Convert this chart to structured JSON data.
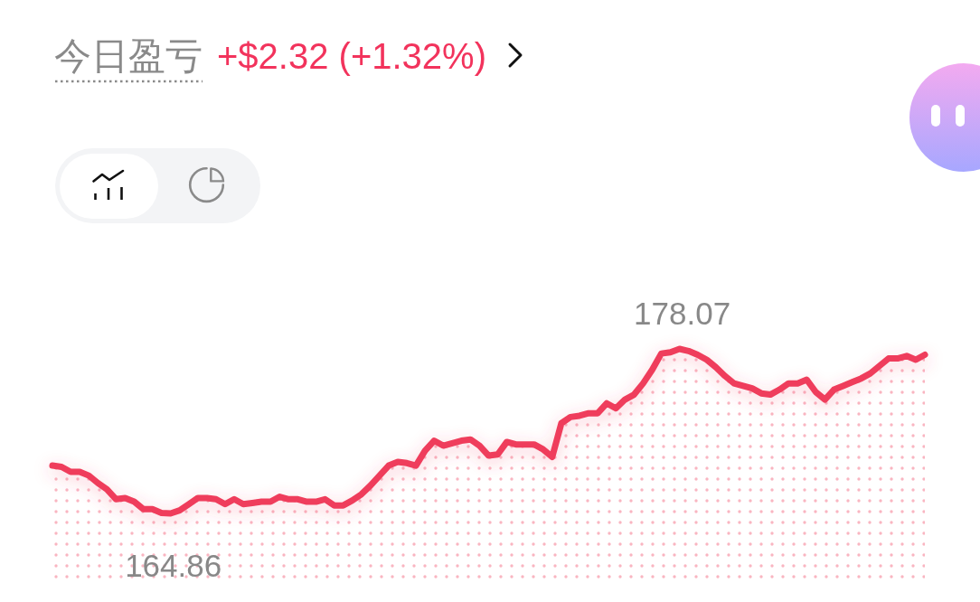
{
  "chart_data": {
    "type": "area",
    "title": "今日盈亏",
    "subtitle": "+$2.32 (+1.32%)",
    "categories": [
      null,
      null,
      null,
      null,
      null,
      null,
      null,
      null,
      null,
      null,
      null,
      null,
      null,
      null,
      null,
      null,
      null,
      null,
      null,
      null,
      null,
      null,
      null,
      null,
      null,
      null,
      null,
      null,
      null,
      null,
      null,
      null,
      null,
      null,
      null,
      null,
      null,
      null,
      null,
      null,
      null,
      null,
      null,
      null,
      null,
      null,
      null,
      null,
      null,
      null,
      null,
      null,
      null,
      null,
      null,
      null,
      null,
      null,
      null,
      null,
      null,
      null,
      null,
      null,
      null,
      null,
      null,
      null,
      null,
      null,
      null,
      null,
      null,
      null,
      null,
      null,
      null,
      null,
      null,
      null,
      null,
      null,
      null,
      null,
      null,
      null,
      null,
      null,
      null,
      null,
      null,
      null,
      null,
      null,
      null,
      null,
      null
    ],
    "series": [
      {
        "color": "#ef3d5b",
        "values": [
          168.7,
          168.6,
          168.2,
          168.2,
          167.9,
          167.3,
          166.8,
          166.0,
          166.1,
          165.8,
          165.2,
          165.2,
          164.9,
          164.86,
          165.1,
          165.6,
          166.1,
          166.1,
          166.0,
          165.6,
          166.0,
          165.6,
          165.7,
          165.8,
          165.8,
          166.2,
          166.0,
          166.0,
          165.8,
          165.8,
          166.0,
          165.5,
          165.5,
          165.9,
          166.4,
          167.1,
          167.9,
          168.7,
          169.0,
          168.9,
          168.7,
          169.9,
          170.7,
          170.3,
          170.5,
          170.7,
          170.8,
          170.3,
          169.5,
          169.6,
          170.6,
          170.4,
          170.4,
          170.4,
          170.0,
          169.4,
          172.1,
          172.6,
          172.7,
          172.9,
          172.9,
          173.7,
          173.3,
          174.0,
          174.4,
          175.3,
          176.4,
          177.7,
          177.8,
          178.07,
          177.9,
          177.6,
          177.2,
          176.6,
          175.9,
          175.3,
          175.1,
          174.9,
          174.5,
          174.4,
          174.8,
          175.3,
          175.3,
          175.6,
          174.6,
          174.0,
          174.8,
          175.1,
          175.4,
          175.7,
          176.1,
          176.7,
          177.3,
          177.3,
          177.5,
          177.2,
          177.6
        ],
        "value_labels": [
          null,
          null,
          null,
          null,
          null,
          null,
          null,
          null,
          null,
          null,
          null,
          null,
          null,
          "164.86",
          null,
          null,
          null,
          null,
          null,
          null,
          null,
          null,
          null,
          null,
          null,
          null,
          null,
          null,
          null,
          null,
          null,
          null,
          null,
          null,
          null,
          null,
          null,
          null,
          null,
          null,
          null,
          null,
          null,
          null,
          null,
          null,
          null,
          null,
          null,
          null,
          null,
          null,
          null,
          null,
          null,
          null,
          null,
          null,
          null,
          null,
          null,
          null,
          null,
          null,
          null,
          null,
          null,
          null,
          null,
          "178.07",
          null,
          null,
          null,
          null,
          null,
          null,
          null,
          null,
          null,
          null,
          null,
          null,
          null,
          null,
          null,
          null,
          null,
          null,
          null,
          null,
          null,
          null,
          null,
          null,
          null,
          null,
          null
        ]
      }
    ]
  }
}
